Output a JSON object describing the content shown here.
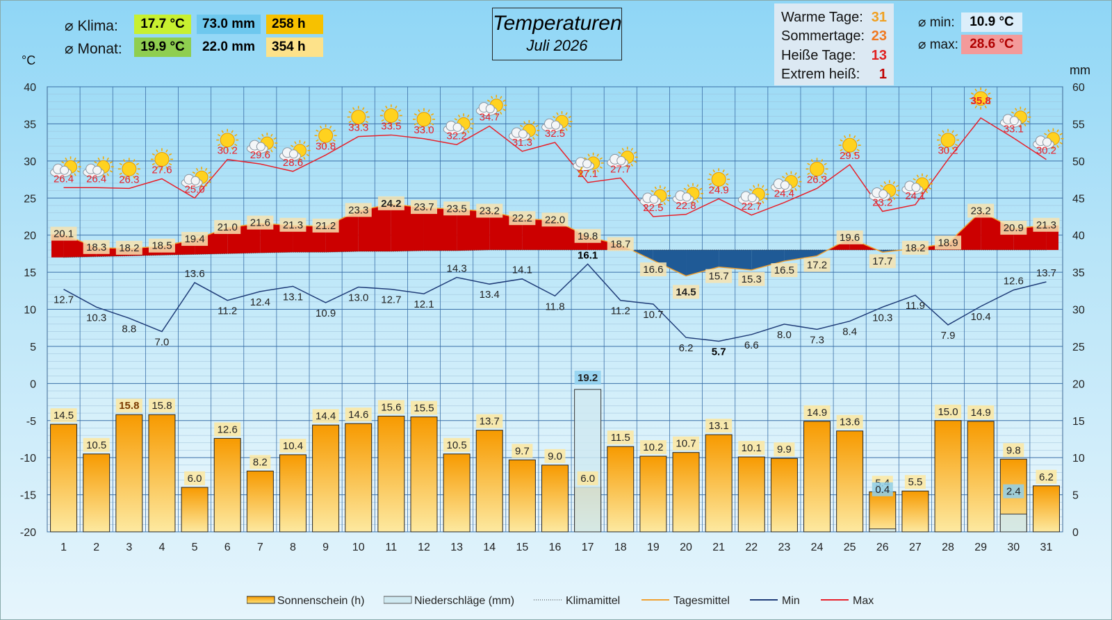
{
  "header": {
    "klima_label": "⌀ Klima:",
    "klima_temp": "17.7 °C",
    "klima_rain": "73.0 mm",
    "klima_sun": "258  h",
    "monat_label": "⌀ Monat:",
    "monat_temp": "19.9  °C",
    "monat_rain": "22.0 mm",
    "monat_sun": "354  h",
    "min_label": "⌀ min:",
    "min_value": "10.9 °C",
    "max_label": "⌀ max:",
    "max_value": "28.6 °C",
    "unit_left": "°C",
    "unit_right": "mm"
  },
  "title": {
    "line1": "Temperaturen",
    "line2": "Juli 2026"
  },
  "stats": [
    {
      "label": "Warme Tage:",
      "value": "31",
      "color": "#f0a020"
    },
    {
      "label": "Sommertage:",
      "value": "23",
      "color": "#f07820"
    },
    {
      "label": "Heiße Tage:",
      "value": "13",
      "color": "#e02020"
    },
    {
      "label": "Extrem heiß:",
      "value": "1",
      "color": "#c00000"
    }
  ],
  "legend": {
    "sun": "Sonnenschein (h)",
    "rain": "Niederschläge (mm)",
    "klimamittel": "Klimamittel",
    "tagesmittel": "Tagesmittel",
    "min": "Min",
    "max": "Max"
  },
  "colors": {
    "max_line": "#e8202a",
    "min_line": "#1f3c78",
    "warm_fill": "#cc0000",
    "cool_fill": "#1f5a96",
    "sun_bar": "#f7b520",
    "rain_bar": "#cfe9f1",
    "klima_temp_chip": "#c8f030",
    "klima_rain_chip": "#6ec8ee",
    "klima_sun_chip": "#f7c100",
    "monat_temp_chip": "#8fce50",
    "monat_sun_chip": "#fde28a",
    "min_chip": "#dceefa",
    "max_chip": "#f39a9a"
  },
  "chart_data": {
    "type": "line",
    "x": [
      1,
      2,
      3,
      4,
      5,
      6,
      7,
      8,
      9,
      10,
      11,
      12,
      13,
      14,
      15,
      16,
      17,
      18,
      19,
      20,
      21,
      22,
      23,
      24,
      25,
      26,
      27,
      28,
      29,
      30,
      31
    ],
    "y_left_range": [
      -20,
      40
    ],
    "y_left_ticks": [
      "40",
      "35",
      "30",
      "25",
      "20",
      "15",
      "10",
      "5",
      "0",
      "-5",
      "-10",
      "-15",
      "-20"
    ],
    "y_right_range": [
      0,
      60
    ],
    "y_right_ticks": [
      "60",
      "55",
      "50",
      "45",
      "40",
      "35",
      "30",
      "25",
      "20",
      "15",
      "10",
      "5",
      "0"
    ],
    "series": [
      {
        "name": "Max",
        "values": [
          26.4,
          26.4,
          26.3,
          27.6,
          25.0,
          30.2,
          29.6,
          28.6,
          30.8,
          33.3,
          33.5,
          33.0,
          32.2,
          34.7,
          31.3,
          32.5,
          27.1,
          27.7,
          22.5,
          22.8,
          24.9,
          22.7,
          24.4,
          26.3,
          29.5,
          23.2,
          24.1,
          30.2,
          35.8,
          33.1,
          30.2
        ]
      },
      {
        "name": "Min",
        "values": [
          12.7,
          10.3,
          8.8,
          7.0,
          13.6,
          11.2,
          12.4,
          13.1,
          10.9,
          13.0,
          12.7,
          12.1,
          14.3,
          13.4,
          14.1,
          11.8,
          16.1,
          11.2,
          10.7,
          6.2,
          5.7,
          6.6,
          8.0,
          7.3,
          8.4,
          10.3,
          11.9,
          7.9,
          10.4,
          12.6,
          13.7
        ]
      },
      {
        "name": "Tagesmittel",
        "values": [
          20.1,
          18.3,
          18.2,
          18.5,
          19.4,
          21.0,
          21.6,
          21.3,
          21.2,
          23.3,
          24.2,
          23.7,
          23.5,
          23.2,
          22.2,
          22.0,
          19.8,
          18.7,
          16.6,
          14.5,
          15.7,
          15.3,
          16.5,
          17.2,
          19.6,
          17.7,
          18.2,
          18.9,
          23.2,
          20.9,
          21.3
        ]
      },
      {
        "name": "Klimamittel",
        "values": [
          17.0,
          17.1,
          17.2,
          17.3,
          17.4,
          17.5,
          17.6,
          17.7,
          17.7,
          17.8,
          17.8,
          17.9,
          17.9,
          18.0,
          18.0,
          18.0,
          18.0,
          18.0,
          18.0,
          18.0,
          18.0,
          18.0,
          18.0,
          18.0,
          18.0,
          18.0,
          18.0,
          18.0,
          18.0,
          18.0,
          18.0
        ]
      },
      {
        "name": "Sonnenschein (h)",
        "values": [
          14.5,
          10.5,
          15.8,
          15.8,
          6.0,
          12.6,
          8.2,
          10.4,
          14.4,
          14.6,
          15.6,
          15.5,
          10.5,
          13.7,
          9.7,
          9.0,
          6.0,
          11.5,
          10.2,
          10.7,
          13.1,
          10.1,
          9.9,
          14.9,
          13.6,
          5.4,
          5.5,
          15.0,
          14.9,
          9.8,
          6.2
        ]
      },
      {
        "name": "Niederschläge (mm)",
        "values": [
          0,
          0,
          0,
          0,
          0,
          0,
          0,
          0,
          0,
          0,
          0,
          0,
          0,
          0,
          0,
          0,
          19.2,
          0,
          0,
          0,
          0,
          0,
          0,
          0,
          0,
          0.4,
          0,
          0,
          0,
          2.4,
          0
        ]
      }
    ],
    "bold_labels": {
      "max_day": 29,
      "min_day": 21,
      "tages_max_day": 11,
      "tages_min_day": 20,
      "klima_min_day": 17,
      "sun_max_day": 3,
      "rain_max_day": 17
    },
    "weather_icons": [
      "partly-cloudy-sun",
      "partly-cloudy-sun",
      "sun",
      "sun",
      "cloud-sun",
      "sun",
      "cloud-sun",
      "cloud-sun",
      "sun",
      "sun",
      "sun",
      "sun",
      "cloud-sun",
      "cloud-sun",
      "cloud-sun",
      "cloud-sun",
      "thunder-sun",
      "cloud-sun",
      "cloud-sun",
      "cloud-sun",
      "sun",
      "cloud-sun",
      "cloud-sun",
      "sun",
      "sun",
      "cloud-sun",
      "cloud-sun",
      "sun",
      "sun",
      "cloud-sun",
      "cloud-sun"
    ],
    "grid": true,
    "legend_position": "bottom"
  }
}
